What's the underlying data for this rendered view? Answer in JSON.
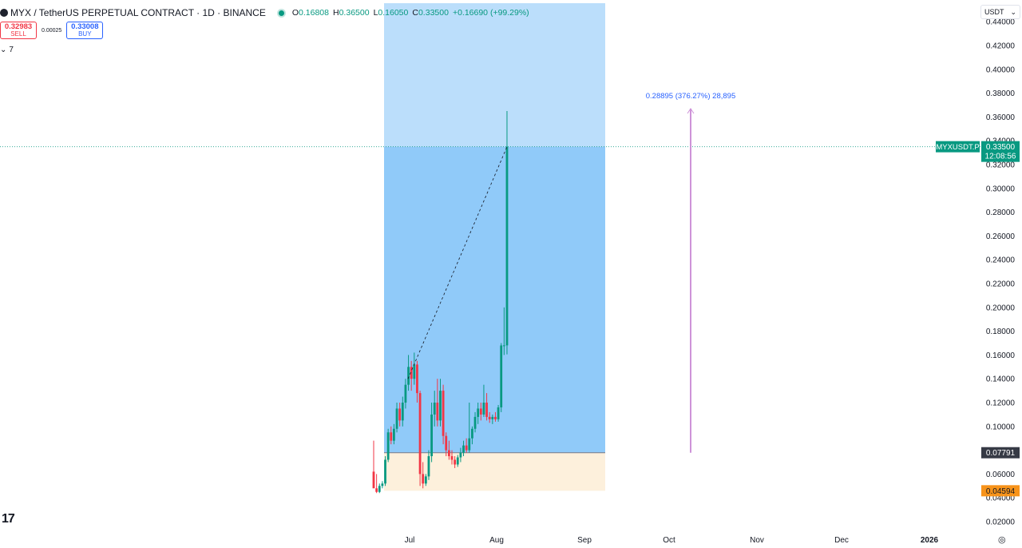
{
  "header": {
    "symbol_title": "MYX / TetherUS PERPETUAL CONTRACT · 1D · BINANCE",
    "ohlc": [
      {
        "key": "O",
        "value": "0.16808"
      },
      {
        "key": "H",
        "value": "0.36500"
      },
      {
        "key": "L",
        "value": "0.16050"
      },
      {
        "key": "C",
        "value": "0.33500"
      },
      {
        "key": "",
        "value": "+0.16690 (+99.29%)"
      }
    ]
  },
  "trade": {
    "sell_price": "0.32983",
    "sell_label": "SELL",
    "spread": "0.00025",
    "buy_price": "0.33008",
    "buy_label": "BUY"
  },
  "indicators_toggle": "7",
  "currency_selector": "USDT",
  "price_labels": {
    "symbol_tag": "MYXUSDT.P",
    "last_price": "0.33500",
    "countdown": "12:08:56",
    "entry_price": "0.07791",
    "stop_price": "0.04594"
  },
  "measure_label": "0.28895 (376.27%) 28,895",
  "colors": {
    "up": "#089981",
    "down": "#f23645",
    "target_zone": "#bbdefb",
    "profit_zone": "#90caf9",
    "stop_zone": "#fdf0dc",
    "measure_arrow": "#ce93d8",
    "stop_tag": "#f7931a"
  },
  "chart_data": {
    "type": "candlestick",
    "ylim": [
      0.01,
      0.445
    ],
    "y_ticks": [
      "0.44000",
      "0.42000",
      "0.40000",
      "0.38000",
      "0.36000",
      "0.34000",
      "0.32000",
      "0.30000",
      "0.28000",
      "0.26000",
      "0.24000",
      "0.22000",
      "0.20000",
      "0.18000",
      "0.16000",
      "0.14000",
      "0.12000",
      "0.10000",
      "0.08000",
      "0.06000",
      "0.04000",
      "0.02000"
    ],
    "x_ticks": [
      "Jul",
      "Aug",
      "Sep",
      "Oct",
      "Nov",
      "Dec",
      "2026"
    ],
    "position": {
      "type": "long",
      "entry": 0.07791,
      "stop": 0.04594,
      "target": 0.445,
      "current": 0.335
    },
    "measure": {
      "from": 0.07791,
      "to": 0.367,
      "change": 0.28895,
      "percent": 376.27
    },
    "candles": [
      [
        0.062,
        0.088,
        0.05,
        0.048
      ],
      [
        0.048,
        0.06,
        0.044,
        0.045
      ],
      [
        0.045,
        0.052,
        0.044,
        0.05
      ],
      [
        0.05,
        0.054,
        0.048,
        0.052
      ],
      [
        0.052,
        0.075,
        0.05,
        0.072
      ],
      [
        0.072,
        0.098,
        0.07,
        0.095
      ],
      [
        0.095,
        0.1,
        0.085,
        0.088
      ],
      [
        0.088,
        0.102,
        0.085,
        0.098
      ],
      [
        0.098,
        0.12,
        0.095,
        0.115
      ],
      [
        0.115,
        0.12,
        0.1,
        0.105
      ],
      [
        0.105,
        0.125,
        0.1,
        0.12
      ],
      [
        0.12,
        0.14,
        0.115,
        0.135
      ],
      [
        0.135,
        0.16,
        0.13,
        0.15
      ],
      [
        0.15,
        0.155,
        0.13,
        0.14
      ],
      [
        0.14,
        0.162,
        0.135,
        0.152
      ],
      [
        0.152,
        0.155,
        0.12,
        0.128
      ],
      [
        0.128,
        0.13,
        0.05,
        0.06
      ],
      [
        0.06,
        0.07,
        0.048,
        0.052
      ],
      [
        0.052,
        0.06,
        0.05,
        0.058
      ],
      [
        0.058,
        0.08,
        0.055,
        0.075
      ],
      [
        0.075,
        0.12,
        0.07,
        0.11
      ],
      [
        0.11,
        0.13,
        0.1,
        0.12
      ],
      [
        0.12,
        0.14,
        0.1,
        0.105
      ],
      [
        0.105,
        0.14,
        0.1,
        0.13
      ],
      [
        0.13,
        0.135,
        0.085,
        0.092
      ],
      [
        0.092,
        0.095,
        0.075,
        0.08
      ],
      [
        0.08,
        0.088,
        0.072,
        0.075
      ],
      [
        0.075,
        0.08,
        0.068,
        0.072
      ],
      [
        0.072,
        0.075,
        0.065,
        0.068
      ],
      [
        0.068,
        0.076,
        0.066,
        0.074
      ],
      [
        0.074,
        0.082,
        0.07,
        0.078
      ],
      [
        0.078,
        0.088,
        0.075,
        0.084
      ],
      [
        0.084,
        0.09,
        0.078,
        0.08
      ],
      [
        0.08,
        0.12,
        0.078,
        0.09
      ],
      [
        0.09,
        0.1,
        0.085,
        0.098
      ],
      [
        0.098,
        0.112,
        0.095,
        0.108
      ],
      [
        0.108,
        0.12,
        0.102,
        0.115
      ],
      [
        0.115,
        0.12,
        0.105,
        0.11
      ],
      [
        0.11,
        0.135,
        0.108,
        0.12
      ],
      [
        0.12,
        0.128,
        0.105,
        0.108
      ],
      [
        0.108,
        0.112,
        0.103,
        0.106
      ],
      [
        0.106,
        0.11,
        0.102,
        0.108
      ],
      [
        0.108,
        0.112,
        0.104,
        0.106
      ],
      [
        0.106,
        0.118,
        0.104,
        0.116
      ],
      [
        0.116,
        0.17,
        0.112,
        0.168
      ],
      [
        0.16808,
        0.2,
        0.16,
        0.16808
      ],
      [
        0.16808,
        0.365,
        0.1605,
        0.335
      ]
    ]
  }
}
